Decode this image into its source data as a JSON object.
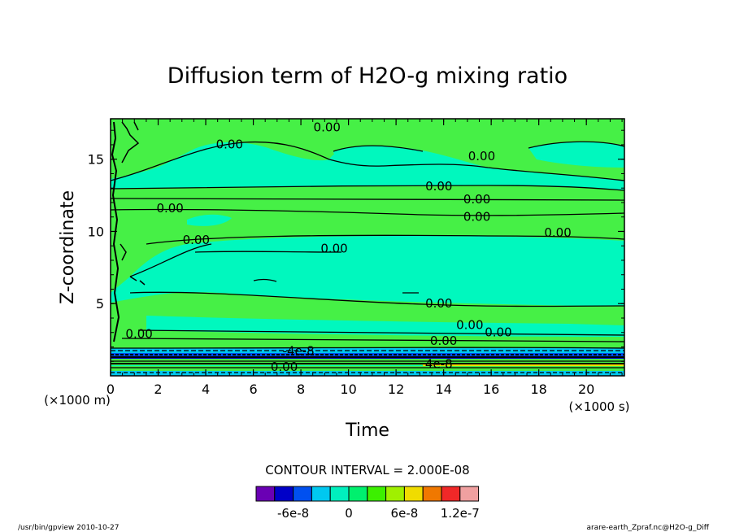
{
  "chart_data": {
    "type": "heatmap",
    "title": "Diffusion term of H2O-g mixing ratio",
    "xlabel": "Time",
    "ylabel": "Z-coordinate",
    "x_unit": "(×1000 s)",
    "y_unit": "(×1000 m)",
    "xlim": [
      0,
      21.6
    ],
    "ylim": [
      0,
      17.8
    ],
    "x_ticks": [
      0,
      2,
      4,
      6,
      8,
      10,
      12,
      14,
      16,
      18,
      20
    ],
    "y_ticks": [
      5,
      10,
      15
    ],
    "x_tick_labels": [
      "0",
      "2",
      "4",
      "6",
      "8",
      "10",
      "12",
      "14",
      "16",
      "18",
      "20"
    ],
    "y_tick_labels": [
      "5",
      "10",
      "15"
    ],
    "contour_interval": "CONTOUR INTERVAL = 2.000E-08",
    "contour_labels": [
      {
        "text": "0.00",
        "x": 9.1,
        "z": 17.1
      },
      {
        "text": "0.00",
        "x": 5.0,
        "z": 15.9
      },
      {
        "text": "0.00",
        "x": 15.6,
        "z": 15.1
      },
      {
        "text": "0.00",
        "x": 13.8,
        "z": 13.0
      },
      {
        "text": "0.00",
        "x": 15.4,
        "z": 12.1
      },
      {
        "text": "0.00",
        "x": 15.4,
        "z": 10.9
      },
      {
        "text": "0.00",
        "x": 2.5,
        "z": 11.5
      },
      {
        "text": "0.00",
        "x": 3.6,
        "z": 9.3
      },
      {
        "text": "0.00",
        "x": 9.4,
        "z": 8.7
      },
      {
        "text": "0.00",
        "x": 18.8,
        "z": 9.8
      },
      {
        "text": "0.00",
        "x": 13.8,
        "z": 4.9
      },
      {
        "text": "0.00",
        "x": 15.1,
        "z": 3.4
      },
      {
        "text": "0.00",
        "x": 16.3,
        "z": 2.9
      },
      {
        "text": "0.00",
        "x": 14.0,
        "z": 2.3
      },
      {
        "text": "0.00",
        "x": 1.2,
        "z": 2.8
      },
      {
        "text": "0.00",
        "x": 7.3,
        "z": 0.5
      },
      {
        "text": "-4e-8",
        "x": 7.9,
        "z": 1.6
      },
      {
        "text": "4e-8",
        "x": 13.8,
        "z": 0.7
      }
    ],
    "colorbar": {
      "levels_colors": [
        "#6a00b4",
        "#0000c8",
        "#0050f0",
        "#00c8f0",
        "#00f0be",
        "#00f06e",
        "#3cf000",
        "#a0f000",
        "#f0dc00",
        "#f07800",
        "#f02828",
        "#f0a0a0"
      ],
      "tick_labels": [
        "-6e-8",
        "0",
        "6e-8",
        "1.2e-7"
      ]
    },
    "dominant_values": [
      "0 (light/teal band)",
      "0 (green band)"
    ]
  },
  "footer": {
    "left": "/usr/bin/gpview   2010-10-27",
    "right": "arare-earth_Zpraf.nc@H2O-g_Diff"
  },
  "colors": {
    "teal": "#00f8be",
    "green": "#46f046",
    "cyan": "#00c8f0",
    "blue": "#0050f0",
    "navy": "#0000c8",
    "yellow": "#f0dc00"
  }
}
